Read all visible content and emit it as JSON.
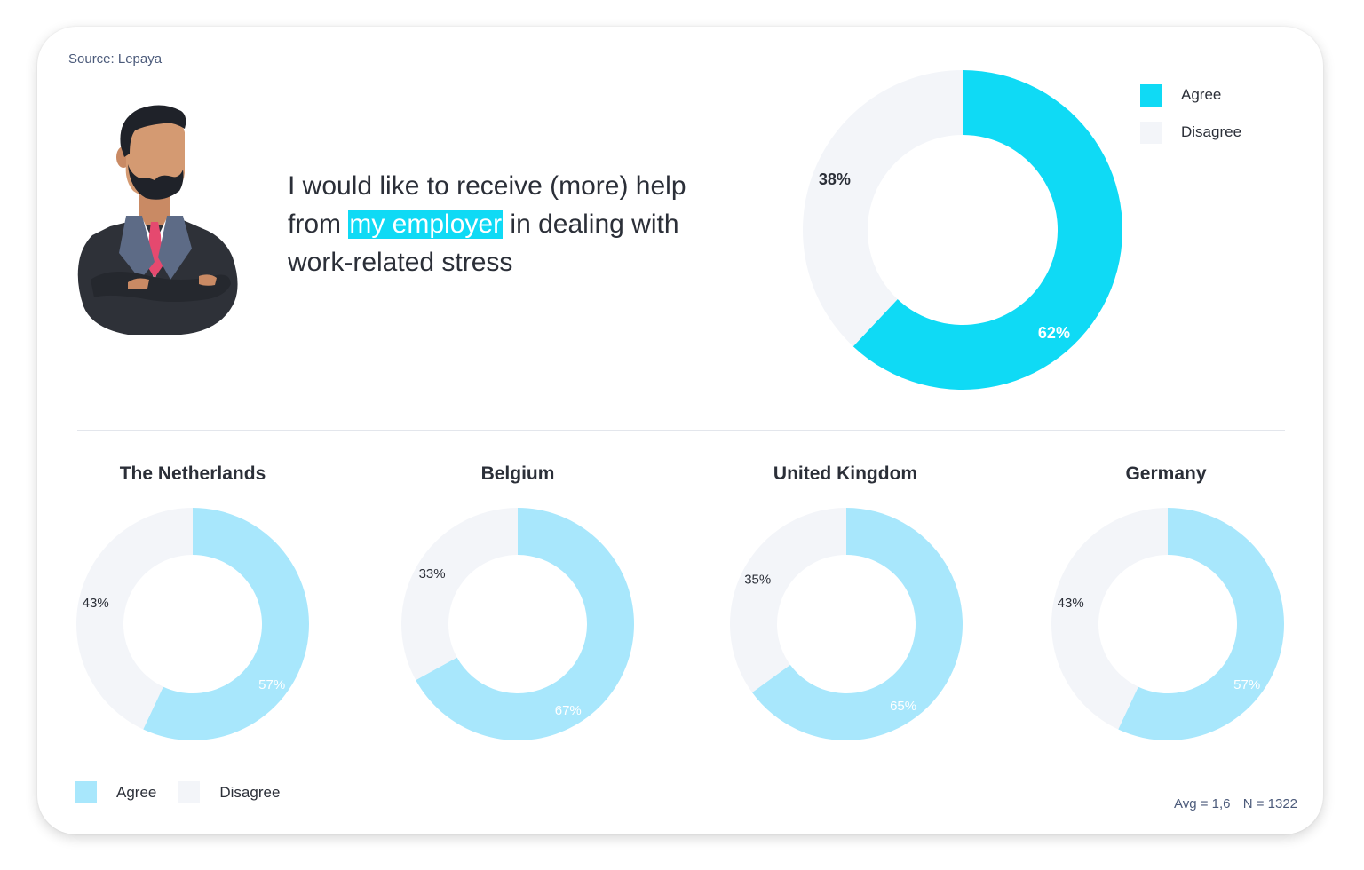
{
  "source": "Source: Lepaya",
  "headline": {
    "before": "I would like to receive (more) help from ",
    "highlight": "my employer",
    "after": " in dealing with work-related stress"
  },
  "colors": {
    "agree_main": "#0fdaf5",
    "agree_light": "#a8e7fc",
    "disagree": "#f3f5f9",
    "text": "#2b2f38",
    "muted": "#4b5a7a"
  },
  "legend_top": [
    {
      "label": "Agree",
      "color": "#0fdaf5"
    },
    {
      "label": "Disagree",
      "color": "#f3f5f9"
    }
  ],
  "legend_bottom": [
    {
      "label": "Agree",
      "color": "#a8e7fc"
    },
    {
      "label": "Disagree",
      "color": "#f3f5f9"
    }
  ],
  "stats": {
    "avg": "Avg = 1,6",
    "n": "N = 1322"
  },
  "chart_data": [
    {
      "type": "pie",
      "donut": true,
      "title": "",
      "categories": [
        "Agree",
        "Disagree"
      ],
      "values": [
        62,
        38
      ],
      "labels": [
        "62%",
        "38%"
      ]
    },
    {
      "type": "pie",
      "donut": true,
      "title": "The Netherlands",
      "categories": [
        "Agree",
        "Disagree"
      ],
      "values": [
        57,
        43
      ],
      "labels": [
        "57%",
        "43%"
      ]
    },
    {
      "type": "pie",
      "donut": true,
      "title": "Belgium",
      "categories": [
        "Agree",
        "Disagree"
      ],
      "values": [
        67,
        33
      ],
      "labels": [
        "67%",
        "33%"
      ]
    },
    {
      "type": "pie",
      "donut": true,
      "title": "United Kingdom",
      "categories": [
        "Agree",
        "Disagree"
      ],
      "values": [
        65,
        35
      ],
      "labels": [
        "65%",
        "35%"
      ]
    },
    {
      "type": "pie",
      "donut": true,
      "title": "Germany",
      "categories": [
        "Agree",
        "Disagree"
      ],
      "values": [
        57,
        43
      ],
      "labels": [
        "57%",
        "43%"
      ]
    }
  ]
}
